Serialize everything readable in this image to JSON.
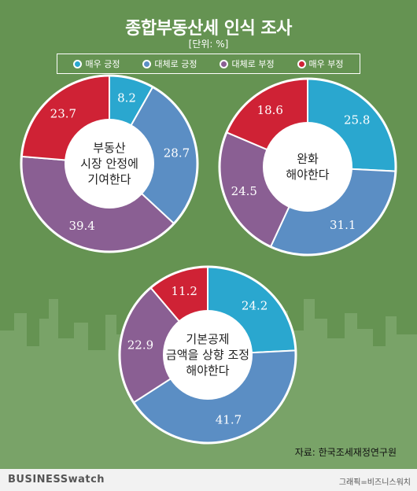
{
  "title": "종합부동산세 인식 조사",
  "unit": "[단위: %]",
  "legend": [
    {
      "label": "매우 긍정",
      "color": "#2aa7cf"
    },
    {
      "label": "대체로 긍정",
      "color": "#5b8ec4"
    },
    {
      "label": "대체로 부정",
      "color": "#8a5f93"
    },
    {
      "label": "매우 부정",
      "color": "#cf2235"
    }
  ],
  "colors": {
    "background": "#659352",
    "skyline": "#79a368",
    "center_fill": "#ffffff",
    "ring_border": "#ffffff"
  },
  "chart_data": [
    {
      "type": "pie",
      "donut": true,
      "center_text": [
        "부동산",
        "시장 안정에",
        "기여한다"
      ],
      "labels": [
        "매우 긍정",
        "대체로 긍정",
        "대체로 부정",
        "매우 부정"
      ],
      "values": [
        8.2,
        28.7,
        39.4,
        23.7
      ]
    },
    {
      "type": "pie",
      "donut": true,
      "center_text": [
        "완화",
        "해야한다"
      ],
      "labels": [
        "매우 긍정",
        "대체로 긍정",
        "대체로 부정",
        "매우 부정"
      ],
      "values": [
        25.8,
        31.1,
        24.5,
        18.6
      ]
    },
    {
      "type": "pie",
      "donut": true,
      "center_text": [
        "기본공제",
        "금액을 상향 조정",
        "해야한다"
      ],
      "labels": [
        "매우 긍정",
        "대체로 긍정",
        "대체로 부정",
        "매우 부정"
      ],
      "values": [
        24.2,
        41.7,
        22.9,
        11.2
      ]
    }
  ],
  "source": "자료: 한국조세재정연구원",
  "brand": "BUSINESSwatch",
  "credit": "그래픽=비즈니스워치"
}
